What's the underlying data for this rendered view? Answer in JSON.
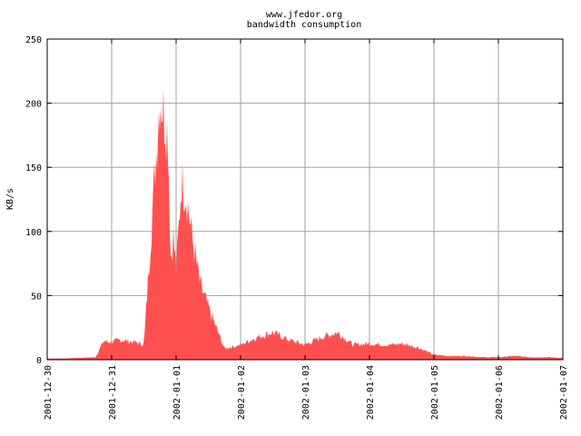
{
  "chart_data": {
    "type": "area",
    "title": "www.jfedor.org",
    "subtitle": "bandwidth consumption",
    "xlabel": "",
    "ylabel": "KB/s",
    "x_tick_labels": [
      "2001-12-30",
      "2001-12-31",
      "2002-01-01",
      "2002-01-02",
      "2002-01-03",
      "2002-01-04",
      "2002-01-05",
      "2002-01-06",
      "2002-01-07"
    ],
    "y_tick_labels": [
      "0",
      "50",
      "100",
      "150",
      "200",
      "250"
    ],
    "xlim": [
      "2001-12-30 00:00",
      "2002-01-07 00:00"
    ],
    "ylim": [
      0,
      250
    ],
    "grid": true,
    "fill_color": "#ff5050",
    "series": [
      {
        "x": [
          "2001-12-30 00:00",
          "2001-12-30 06:00",
          "2001-12-30 12:00",
          "2001-12-30 18:00",
          "2001-12-30 21:00",
          "2001-12-31 00:00",
          "2001-12-31 03:00",
          "2001-12-31 06:00",
          "2001-12-31 09:00",
          "2001-12-31 12:00",
          "2001-12-31 18:00",
          "2001-12-31 21:00",
          "2001-12-31 22:00",
          "2001-12-31 23:00",
          "2002-01-01 00:00",
          "2002-01-01 02:00",
          "2002-01-01 04:00",
          "2002-01-01 06:00",
          "2002-01-01 09:00",
          "2002-01-01 12:00",
          "2002-01-01 18:00",
          "2002-01-02 00:00",
          "2002-01-02 06:00",
          "2002-01-02 12:00",
          "2002-01-02 18:00",
          "2002-01-03 00:00",
          "2002-01-03 06:00",
          "2002-01-03 12:00",
          "2002-01-03 18:00",
          "2002-01-04 00:00",
          "2002-01-04 06:00",
          "2002-01-04 08:00",
          "2002-01-04 12:00",
          "2002-01-04 18:00",
          "2002-01-05 00:00",
          "2002-01-05 06:00",
          "2002-01-05 12:00",
          "2002-01-05 18:00",
          "2002-01-06 00:00",
          "2002-01-06 06:00",
          "2002-01-06 12:00",
          "2002-01-06 18:00",
          "2002-01-07 00:00"
        ],
        "y": [
          1,
          1,
          1.5,
          2,
          15,
          14,
          16,
          15,
          14,
          12,
          215,
          180,
          80,
          100,
          70,
          145,
          130,
          98,
          60,
          42,
          9,
          12,
          18,
          22,
          16,
          12,
          18,
          22,
          12,
          13,
          12,
          12,
          13,
          10,
          4,
          3,
          3,
          2,
          2,
          3,
          2,
          2,
          1.5
        ]
      }
    ]
  }
}
